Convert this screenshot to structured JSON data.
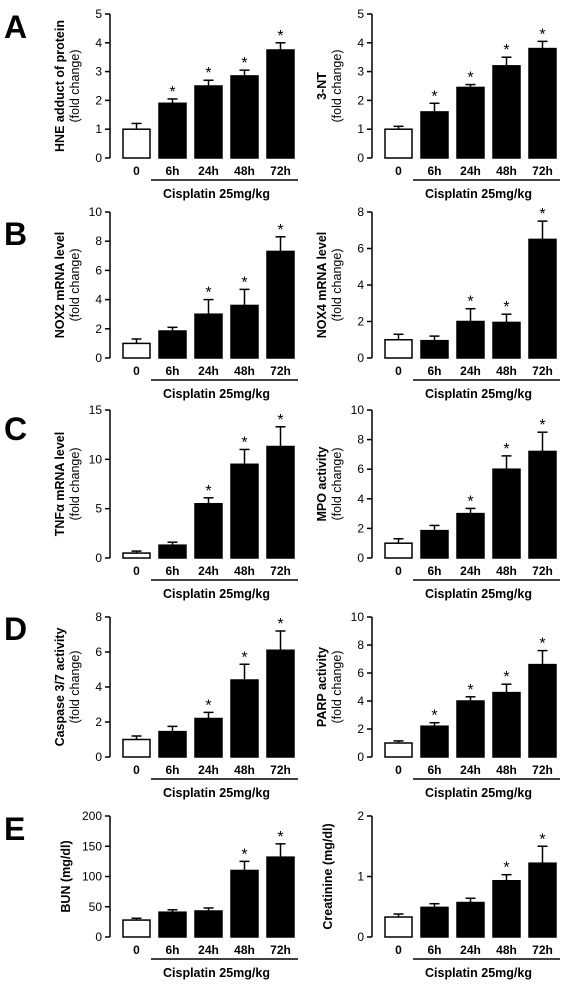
{
  "panel_letters": [
    "A",
    "B",
    "C",
    "D",
    "E"
  ],
  "colors": {
    "control_bar": "#ffffff",
    "treated_bar": "#000000",
    "axis": "#000000"
  },
  "chart_data": [
    {
      "type": "bar",
      "panel": "A",
      "ylabel_main": "HNE adduct of protein",
      "ylabel_sub": "(fold change)",
      "categories": [
        "0",
        "6h",
        "24h",
        "48h",
        "72h"
      ],
      "values": [
        1.0,
        1.9,
        2.5,
        2.85,
        3.75
      ],
      "errors": [
        0.2,
        0.15,
        0.2,
        0.2,
        0.25
      ],
      "significant": [
        false,
        true,
        true,
        true,
        true
      ],
      "ylim": [
        0,
        5
      ],
      "yticks": [
        "0",
        "1",
        "2",
        "3",
        "4",
        "5"
      ],
      "group_label": "Cisplatin 25mg/kg",
      "significance_mark": "*"
    },
    {
      "type": "bar",
      "panel": "A",
      "ylabel_main": "3-NT",
      "ylabel_sub": "(fold change)",
      "categories": [
        "0",
        "6h",
        "24h",
        "48h",
        "72h"
      ],
      "values": [
        1.0,
        1.6,
        2.45,
        3.2,
        3.8
      ],
      "errors": [
        0.1,
        0.3,
        0.1,
        0.3,
        0.25
      ],
      "significant": [
        false,
        true,
        true,
        true,
        true
      ],
      "ylim": [
        0,
        5
      ],
      "yticks": [
        "0",
        "1",
        "2",
        "3",
        "4",
        "5"
      ],
      "group_label": "Cisplatin 25mg/kg",
      "significance_mark": "*"
    },
    {
      "type": "bar",
      "panel": "B",
      "ylabel_main": "NOX2 mRNA level",
      "ylabel_sub": "(fold change)",
      "categories": [
        "0",
        "6h",
        "24h",
        "48h",
        "72h"
      ],
      "values": [
        1.0,
        1.85,
        3.0,
        3.6,
        7.3
      ],
      "errors": [
        0.3,
        0.25,
        1.0,
        1.1,
        1.0
      ],
      "significant": [
        false,
        false,
        true,
        true,
        true
      ],
      "ylim": [
        0,
        10
      ],
      "yticks": [
        "0",
        "2",
        "4",
        "6",
        "8",
        "10"
      ],
      "group_label": "Cisplatin 25mg/kg",
      "significance_mark": "*"
    },
    {
      "type": "bar",
      "panel": "B",
      "ylabel_main": "NOX4 mRNA level",
      "ylabel_sub": "(fold change)",
      "categories": [
        "0",
        "6h",
        "24h",
        "48h",
        "72h"
      ],
      "values": [
        1.0,
        0.95,
        2.0,
        1.95,
        6.5
      ],
      "errors": [
        0.3,
        0.25,
        0.7,
        0.45,
        1.0
      ],
      "significant": [
        false,
        false,
        true,
        true,
        true
      ],
      "ylim": [
        0,
        8
      ],
      "yticks": [
        "0",
        "2",
        "4",
        "6",
        "8"
      ],
      "group_label": "Cisplatin 25mg/kg",
      "significance_mark": "*"
    },
    {
      "type": "bar",
      "panel": "C",
      "ylabel_main": "TNFα mRNA level",
      "ylabel_sub": "(fold change)",
      "categories": [
        "0",
        "6h",
        "24h",
        "48h",
        "72h"
      ],
      "values": [
        0.5,
        1.3,
        5.5,
        9.5,
        11.3
      ],
      "errors": [
        0.2,
        0.3,
        0.6,
        1.5,
        2.0
      ],
      "significant": [
        false,
        false,
        true,
        true,
        true
      ],
      "ylim": [
        0,
        15
      ],
      "yticks": [
        "0",
        "5",
        "10",
        "15"
      ],
      "group_label": "Cisplatin 25mg/kg",
      "significance_mark": "*"
    },
    {
      "type": "bar",
      "panel": "C",
      "ylabel_main": "MPO activity",
      "ylabel_sub": "(fold change)",
      "categories": [
        "0",
        "6h",
        "24h",
        "48h",
        "72h"
      ],
      "values": [
        1.0,
        1.85,
        3.0,
        6.0,
        7.2
      ],
      "errors": [
        0.3,
        0.35,
        0.35,
        0.9,
        1.3
      ],
      "significant": [
        false,
        false,
        true,
        true,
        true
      ],
      "ylim": [
        0,
        10
      ],
      "yticks": [
        "0",
        "2",
        "4",
        "6",
        "8",
        "10"
      ],
      "group_label": "Cisplatin 25mg/kg",
      "significance_mark": "*"
    },
    {
      "type": "bar",
      "panel": "D",
      "ylabel_main": "Caspase 3/7 activity",
      "ylabel_sub": "(fold change)",
      "categories": [
        "0",
        "6h",
        "24h",
        "48h",
        "72h"
      ],
      "values": [
        1.0,
        1.45,
        2.2,
        4.4,
        6.1
      ],
      "errors": [
        0.2,
        0.3,
        0.35,
        0.9,
        1.1
      ],
      "significant": [
        false,
        false,
        true,
        true,
        true
      ],
      "ylim": [
        0,
        8
      ],
      "yticks": [
        "0",
        "2",
        "4",
        "6",
        "8"
      ],
      "group_label": "Cisplatin 25mg/kg",
      "significance_mark": "*"
    },
    {
      "type": "bar",
      "panel": "D",
      "ylabel_main": "PARP activity",
      "ylabel_sub": "(fold change)",
      "categories": [
        "0",
        "6h",
        "24h",
        "48h",
        "72h"
      ],
      "values": [
        1.0,
        2.2,
        4.0,
        4.6,
        6.6
      ],
      "errors": [
        0.15,
        0.25,
        0.3,
        0.6,
        1.0
      ],
      "significant": [
        false,
        true,
        true,
        true,
        true
      ],
      "ylim": [
        0,
        10
      ],
      "yticks": [
        "0",
        "2",
        "4",
        "6",
        "8",
        "10"
      ],
      "group_label": "Cisplatin 25mg/kg",
      "significance_mark": "*"
    },
    {
      "type": "bar",
      "panel": "E",
      "ylabel_main": "BUN (mg/dl)",
      "ylabel_sub": "",
      "categories": [
        "0",
        "6h",
        "24h",
        "48h",
        "72h"
      ],
      "values": [
        28,
        41,
        43,
        110,
        132
      ],
      "errors": [
        3,
        4,
        5,
        15,
        22
      ],
      "significant": [
        false,
        false,
        false,
        true,
        true
      ],
      "ylim": [
        0,
        200
      ],
      "yticks": [
        "0",
        "50",
        "100",
        "150",
        "200"
      ],
      "group_label": "Cisplatin 25mg/kg",
      "significance_mark": "*"
    },
    {
      "type": "bar",
      "panel": "E",
      "ylabel_main": "Creatinine (mg/dl)",
      "ylabel_sub": "",
      "categories": [
        "0",
        "6h",
        "24h",
        "48h",
        "72h"
      ],
      "values": [
        0.33,
        0.49,
        0.57,
        0.93,
        1.22
      ],
      "errors": [
        0.05,
        0.06,
        0.07,
        0.1,
        0.28
      ],
      "significant": [
        false,
        false,
        false,
        true,
        true
      ],
      "ylim": [
        0,
        2
      ],
      "yticks": [
        "0",
        "1",
        "2"
      ],
      "group_label": "Cisplatin 25mg/kg",
      "significance_mark": "*"
    }
  ]
}
